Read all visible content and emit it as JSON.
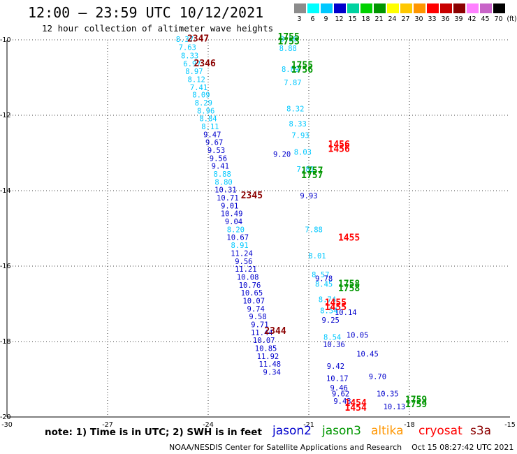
{
  "header": {
    "title": "12:00 – 23:59 UTC 10/12/2021",
    "subtitle": "12 hour collection of altimeter wave heights"
  },
  "legend": {
    "labels": [
      "3",
      "6",
      "9",
      "12",
      "15",
      "18",
      "21",
      "24",
      "27",
      "30",
      "33",
      "36",
      "39",
      "42",
      "45",
      "70",
      "(ft)"
    ],
    "colors": [
      "#8c8c8c",
      "#00ffff",
      "#00c8ff",
      "#0000cc",
      "#00d2a0",
      "#00d200",
      "#009600",
      "#ffff00",
      "#ffc800",
      "#ff9600",
      "#ff0000",
      "#c80000",
      "#8b0000",
      "#ff80ff",
      "#c864c8",
      "#000000"
    ]
  },
  "footer": {
    "note": "note: 1) Time is in UTC; 2) SWH is in feet",
    "satellites": [
      {
        "name": "jason2",
        "color": "#0000cc"
      },
      {
        "name": "jason3",
        "color": "#009600"
      },
      {
        "name": "altika",
        "color": "#ff9600"
      },
      {
        "name": "cryosat",
        "color": "#ff0000"
      },
      {
        "name": "s3a",
        "color": "#8b0000"
      }
    ],
    "credit": "NOAA/NESDIS Center for Satellite Applications and Research    Oct 15 08:27:42 UTC 2021"
  },
  "chart_data": {
    "type": "scatter",
    "title": "12:00 – 23:59 UTC 10/12/2021",
    "subtitle": "12 hour collection of altimeter wave heights",
    "xlabel": "",
    "ylabel": "",
    "xlim": [
      -30,
      -15
    ],
    "ylim": [
      -20,
      -10
    ],
    "x_ticks": [
      -30,
      -27,
      -24,
      -21,
      -18,
      -15
    ],
    "y_ticks": [
      -10,
      -12,
      -14,
      -16,
      -18,
      -20
    ],
    "grid": true,
    "series": [
      {
        "name": "s3a",
        "color_note": "track with light-blue and navy wave heights",
        "points": [
          {
            "x": -24.7,
            "y": -10.06,
            "v": "8.37",
            "c": "#00c8ff"
          },
          {
            "x": -24.62,
            "y": -10.27,
            "v": "7.63",
            "c": "#00c8ff"
          },
          {
            "x": -24.55,
            "y": -10.49,
            "v": "8.33",
            "c": "#00c8ff"
          },
          {
            "x": -24.48,
            "y": -10.7,
            "v": "6.97",
            "c": "#00c8ff"
          },
          {
            "x": -24.42,
            "y": -10.91,
            "v": "8.97",
            "c": "#00c8ff"
          },
          {
            "x": -24.35,
            "y": -11.12,
            "v": "8.12",
            "c": "#00c8ff"
          },
          {
            "x": -24.28,
            "y": -11.33,
            "v": "7.41",
            "c": "#00c8ff"
          },
          {
            "x": -24.21,
            "y": -11.53,
            "v": "8.09",
            "c": "#00c8ff"
          },
          {
            "x": -24.14,
            "y": -11.74,
            "v": "8.29",
            "c": "#00c8ff"
          },
          {
            "x": -24.07,
            "y": -11.95,
            "v": "8.96",
            "c": "#00c8ff"
          },
          {
            "x": -24.0,
            "y": -12.16,
            "v": "8.84",
            "c": "#00c8ff"
          },
          {
            "x": -23.94,
            "y": -12.37,
            "v": "8.11",
            "c": "#00c8ff"
          },
          {
            "x": -23.88,
            "y": -12.58,
            "v": "9.47",
            "c": "#0000cc"
          },
          {
            "x": -23.82,
            "y": -12.79,
            "v": "9.67",
            "c": "#0000cc"
          },
          {
            "x": -23.76,
            "y": -13.0,
            "v": "9.53",
            "c": "#0000cc"
          },
          {
            "x": -23.7,
            "y": -13.21,
            "v": "9.56",
            "c": "#0000cc"
          },
          {
            "x": -23.64,
            "y": -13.42,
            "v": "9.41",
            "c": "#0000cc"
          },
          {
            "x": -23.58,
            "y": -13.63,
            "v": "8.88",
            "c": "#00c8ff"
          },
          {
            "x": -23.54,
            "y": -13.84,
            "v": "8.80",
            "c": "#00c8ff"
          },
          {
            "x": -23.48,
            "y": -14.05,
            "v": "10.31",
            "c": "#0000cc"
          },
          {
            "x": -23.42,
            "y": -14.26,
            "v": "10.71",
            "c": "#0000cc"
          },
          {
            "x": -23.36,
            "y": -14.47,
            "v": "9.01",
            "c": "#0000cc"
          },
          {
            "x": -23.3,
            "y": -14.68,
            "v": "10.49",
            "c": "#0000cc"
          },
          {
            "x": -23.24,
            "y": -14.89,
            "v": "9.04",
            "c": "#0000cc"
          },
          {
            "x": -23.18,
            "y": -15.1,
            "v": "8.20",
            "c": "#00c8ff"
          },
          {
            "x": -23.12,
            "y": -15.31,
            "v": "10.67",
            "c": "#0000cc"
          },
          {
            "x": -23.06,
            "y": -15.52,
            "v": "8.91",
            "c": "#00c8ff"
          },
          {
            "x": -23.0,
            "y": -15.73,
            "v": "11.24",
            "c": "#0000cc"
          },
          {
            "x": -22.94,
            "y": -15.94,
            "v": "9.56",
            "c": "#0000cc"
          },
          {
            "x": -22.88,
            "y": -16.15,
            "v": "11.21",
            "c": "#0000cc"
          },
          {
            "x": -22.82,
            "y": -16.36,
            "v": "10.08",
            "c": "#0000cc"
          },
          {
            "x": -22.76,
            "y": -16.57,
            "v": "10.76",
            "c": "#0000cc"
          },
          {
            "x": -22.7,
            "y": -16.78,
            "v": "10.65",
            "c": "#0000cc"
          },
          {
            "x": -22.64,
            "y": -16.99,
            "v": "10.07",
            "c": "#0000cc"
          },
          {
            "x": -22.58,
            "y": -17.2,
            "v": "9.74",
            "c": "#0000cc"
          },
          {
            "x": -22.52,
            "y": -17.41,
            "v": "9.58",
            "c": "#0000cc"
          },
          {
            "x": -22.46,
            "y": -17.62,
            "v": "9.71",
            "c": "#0000cc"
          },
          {
            "x": -22.4,
            "y": -17.83,
            "v": "11.44",
            "c": "#0000cc"
          },
          {
            "x": -22.34,
            "y": -18.04,
            "v": "10.07",
            "c": "#0000cc"
          },
          {
            "x": -22.28,
            "y": -18.25,
            "v": "10.85",
            "c": "#0000cc"
          },
          {
            "x": -22.22,
            "y": -18.46,
            "v": "11.92",
            "c": "#0000cc"
          },
          {
            "x": -22.16,
            "y": -18.67,
            "v": "11.48",
            "c": "#0000cc"
          },
          {
            "x": -22.1,
            "y": -18.88,
            "v": "9.34",
            "c": "#0000cc"
          }
        ]
      },
      {
        "name": "jason3",
        "points": [
          {
            "x": -21.6,
            "y": -10.05,
            "v": "8.56",
            "c": "#00c8ff"
          },
          {
            "x": -21.62,
            "y": -10.3,
            "v": "8.88",
            "c": "#00c8ff"
          },
          {
            "x": -21.55,
            "y": -10.85,
            "v": "8.89",
            "c": "#00c8ff"
          },
          {
            "x": -21.48,
            "y": -11.2,
            "v": "7.87",
            "c": "#00c8ff"
          },
          {
            "x": -21.4,
            "y": -11.9,
            "v": "8.32",
            "c": "#00c8ff"
          },
          {
            "x": -21.33,
            "y": -12.3,
            "v": "8.33",
            "c": "#00c8ff"
          },
          {
            "x": -21.25,
            "y": -12.6,
            "v": "7.93",
            "c": "#00c8ff"
          },
          {
            "x": -21.18,
            "y": -13.05,
            "v": "8.03",
            "c": "#00c8ff"
          },
          {
            "x": -21.1,
            "y": -13.5,
            "v": "7.81",
            "c": "#00c8ff"
          },
          {
            "x": -21.0,
            "y": -14.2,
            "v": "9.93",
            "c": "#0000cc"
          },
          {
            "x": -20.85,
            "y": -15.1,
            "v": "7.88",
            "c": "#00c8ff"
          },
          {
            "x": -20.75,
            "y": -15.8,
            "v": "8.01",
            "c": "#00c8ff"
          },
          {
            "x": -20.65,
            "y": -16.3,
            "v": "8.57",
            "c": "#00c8ff"
          },
          {
            "x": -20.55,
            "y": -16.55,
            "v": "8.45",
            "c": "#00c8ff"
          },
          {
            "x": -20.45,
            "y": -16.95,
            "v": "8.74",
            "c": "#00c8ff"
          },
          {
            "x": -20.4,
            "y": -17.25,
            "v": "8.54",
            "c": "#00c8ff"
          },
          {
            "x": -20.35,
            "y": -17.5,
            "v": "9.25",
            "c": "#0000cc"
          },
          {
            "x": -20.3,
            "y": -17.95,
            "v": "8.54",
            "c": "#00c8ff"
          },
          {
            "x": -20.25,
            "y": -18.15,
            "v": "10.36",
            "c": "#0000cc"
          },
          {
            "x": -20.2,
            "y": -18.72,
            "v": "9.42",
            "c": "#0000cc"
          },
          {
            "x": -20.15,
            "y": -19.05,
            "v": "10.17",
            "c": "#0000cc"
          },
          {
            "x": -20.1,
            "y": -19.3,
            "v": "9.46",
            "c": "#0000cc"
          },
          {
            "x": -20.05,
            "y": -19.45,
            "v": "9.62",
            "c": "#0000cc"
          },
          {
            "x": -20.0,
            "y": -19.65,
            "v": "9.43",
            "c": "#0000cc"
          }
        ]
      },
      {
        "name": "jason2",
        "points": [
          {
            "x": -21.8,
            "y": -13.1,
            "v": "9.20",
            "c": "#0000cc"
          },
          {
            "x": -20.55,
            "y": -16.4,
            "v": "9.78",
            "c": "#0000cc"
          },
          {
            "x": -19.9,
            "y": -17.3,
            "v": "10.14",
            "c": "#0000cc"
          },
          {
            "x": -19.55,
            "y": -17.9,
            "v": "10.05",
            "c": "#0000cc"
          },
          {
            "x": -19.25,
            "y": -18.4,
            "v": "10.45",
            "c": "#0000cc"
          },
          {
            "x": -18.95,
            "y": -19.0,
            "v": "9.70",
            "c": "#0000cc"
          },
          {
            "x": -18.65,
            "y": -19.45,
            "v": "10.35",
            "c": "#0000cc"
          },
          {
            "x": -18.45,
            "y": -19.8,
            "v": "10.13",
            "c": "#0000cc"
          }
        ]
      }
    ],
    "time_labels": [
      {
        "x": -24.3,
        "y": -10.05,
        "t": "2347",
        "c": "#8b0000"
      },
      {
        "x": -24.1,
        "y": -10.7,
        "t": "2346",
        "c": "#8b0000"
      },
      {
        "x": -22.7,
        "y": -14.2,
        "t": "2345",
        "c": "#8b0000"
      },
      {
        "x": -22.0,
        "y": -17.8,
        "t": "2344",
        "c": "#8b0000"
      },
      {
        "x": -21.6,
        "y": -10.0,
        "t": "1755",
        "c": "#009600"
      },
      {
        "x": -21.6,
        "y": -10.12,
        "t": "1753",
        "c": "#009600"
      },
      {
        "x": -21.2,
        "y": -10.75,
        "t": "1755",
        "c": "#009600"
      },
      {
        "x": -21.2,
        "y": -10.87,
        "t": "1756",
        "c": "#009600"
      },
      {
        "x": -20.9,
        "y": -13.55,
        "t": "1757",
        "c": "#009600"
      },
      {
        "x": -20.9,
        "y": -13.67,
        "t": "1757",
        "c": "#009600"
      },
      {
        "x": -19.8,
        "y": -16.55,
        "t": "1758",
        "c": "#009600"
      },
      {
        "x": -19.8,
        "y": -16.67,
        "t": "1758",
        "c": "#009600"
      },
      {
        "x": -17.8,
        "y": -19.62,
        "t": "1759",
        "c": "#009600"
      },
      {
        "x": -17.8,
        "y": -19.74,
        "t": "1759",
        "c": "#009600"
      },
      {
        "x": -20.1,
        "y": -12.85,
        "t": "1456",
        "c": "#ff0000"
      },
      {
        "x": -20.1,
        "y": -12.97,
        "t": "1456",
        "c": "#ff0000"
      },
      {
        "x": -19.8,
        "y": -15.32,
        "t": "1455",
        "c": "#ff0000"
      },
      {
        "x": -20.2,
        "y": -17.05,
        "t": "1455",
        "c": "#ff0000"
      },
      {
        "x": -20.2,
        "y": -17.17,
        "t": "1455",
        "c": "#ff0000"
      },
      {
        "x": -19.6,
        "y": -19.7,
        "t": "1454",
        "c": "#ff0000"
      },
      {
        "x": -19.6,
        "y": -19.83,
        "t": "1454",
        "c": "#ff0000"
      }
    ]
  }
}
